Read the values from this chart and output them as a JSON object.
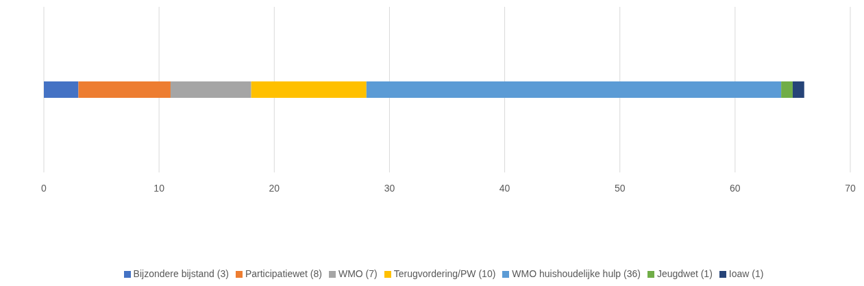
{
  "chart_data": {
    "type": "bar",
    "orientation": "horizontal",
    "stacked": true,
    "categories": [
      null
    ],
    "series": [
      {
        "name": "Bijzondere bijstand (3)",
        "color": "#4472c4",
        "values": [
          3
        ]
      },
      {
        "name": "Participatiewet (8)",
        "color": "#ed7d31",
        "values": [
          8
        ]
      },
      {
        "name": "WMO (7)",
        "color": "#a5a5a5",
        "values": [
          7
        ]
      },
      {
        "name": "Terugvordering/PW (10)",
        "color": "#ffc000",
        "values": [
          10
        ]
      },
      {
        "name": "WMO huishoudelijke hulp (36)",
        "color": "#5b9bd5",
        "values": [
          36
        ]
      },
      {
        "name": "Jeugdwet (1)",
        "color": "#70ad47",
        "values": [
          1
        ]
      },
      {
        "name": "Ioaw (1)",
        "color": "#264478",
        "values": [
          1
        ]
      }
    ],
    "xlim": [
      0,
      70
    ],
    "xticks": [
      0,
      10,
      20,
      30,
      40,
      50,
      60,
      70
    ],
    "grid": "x",
    "legend": "bottom"
  }
}
